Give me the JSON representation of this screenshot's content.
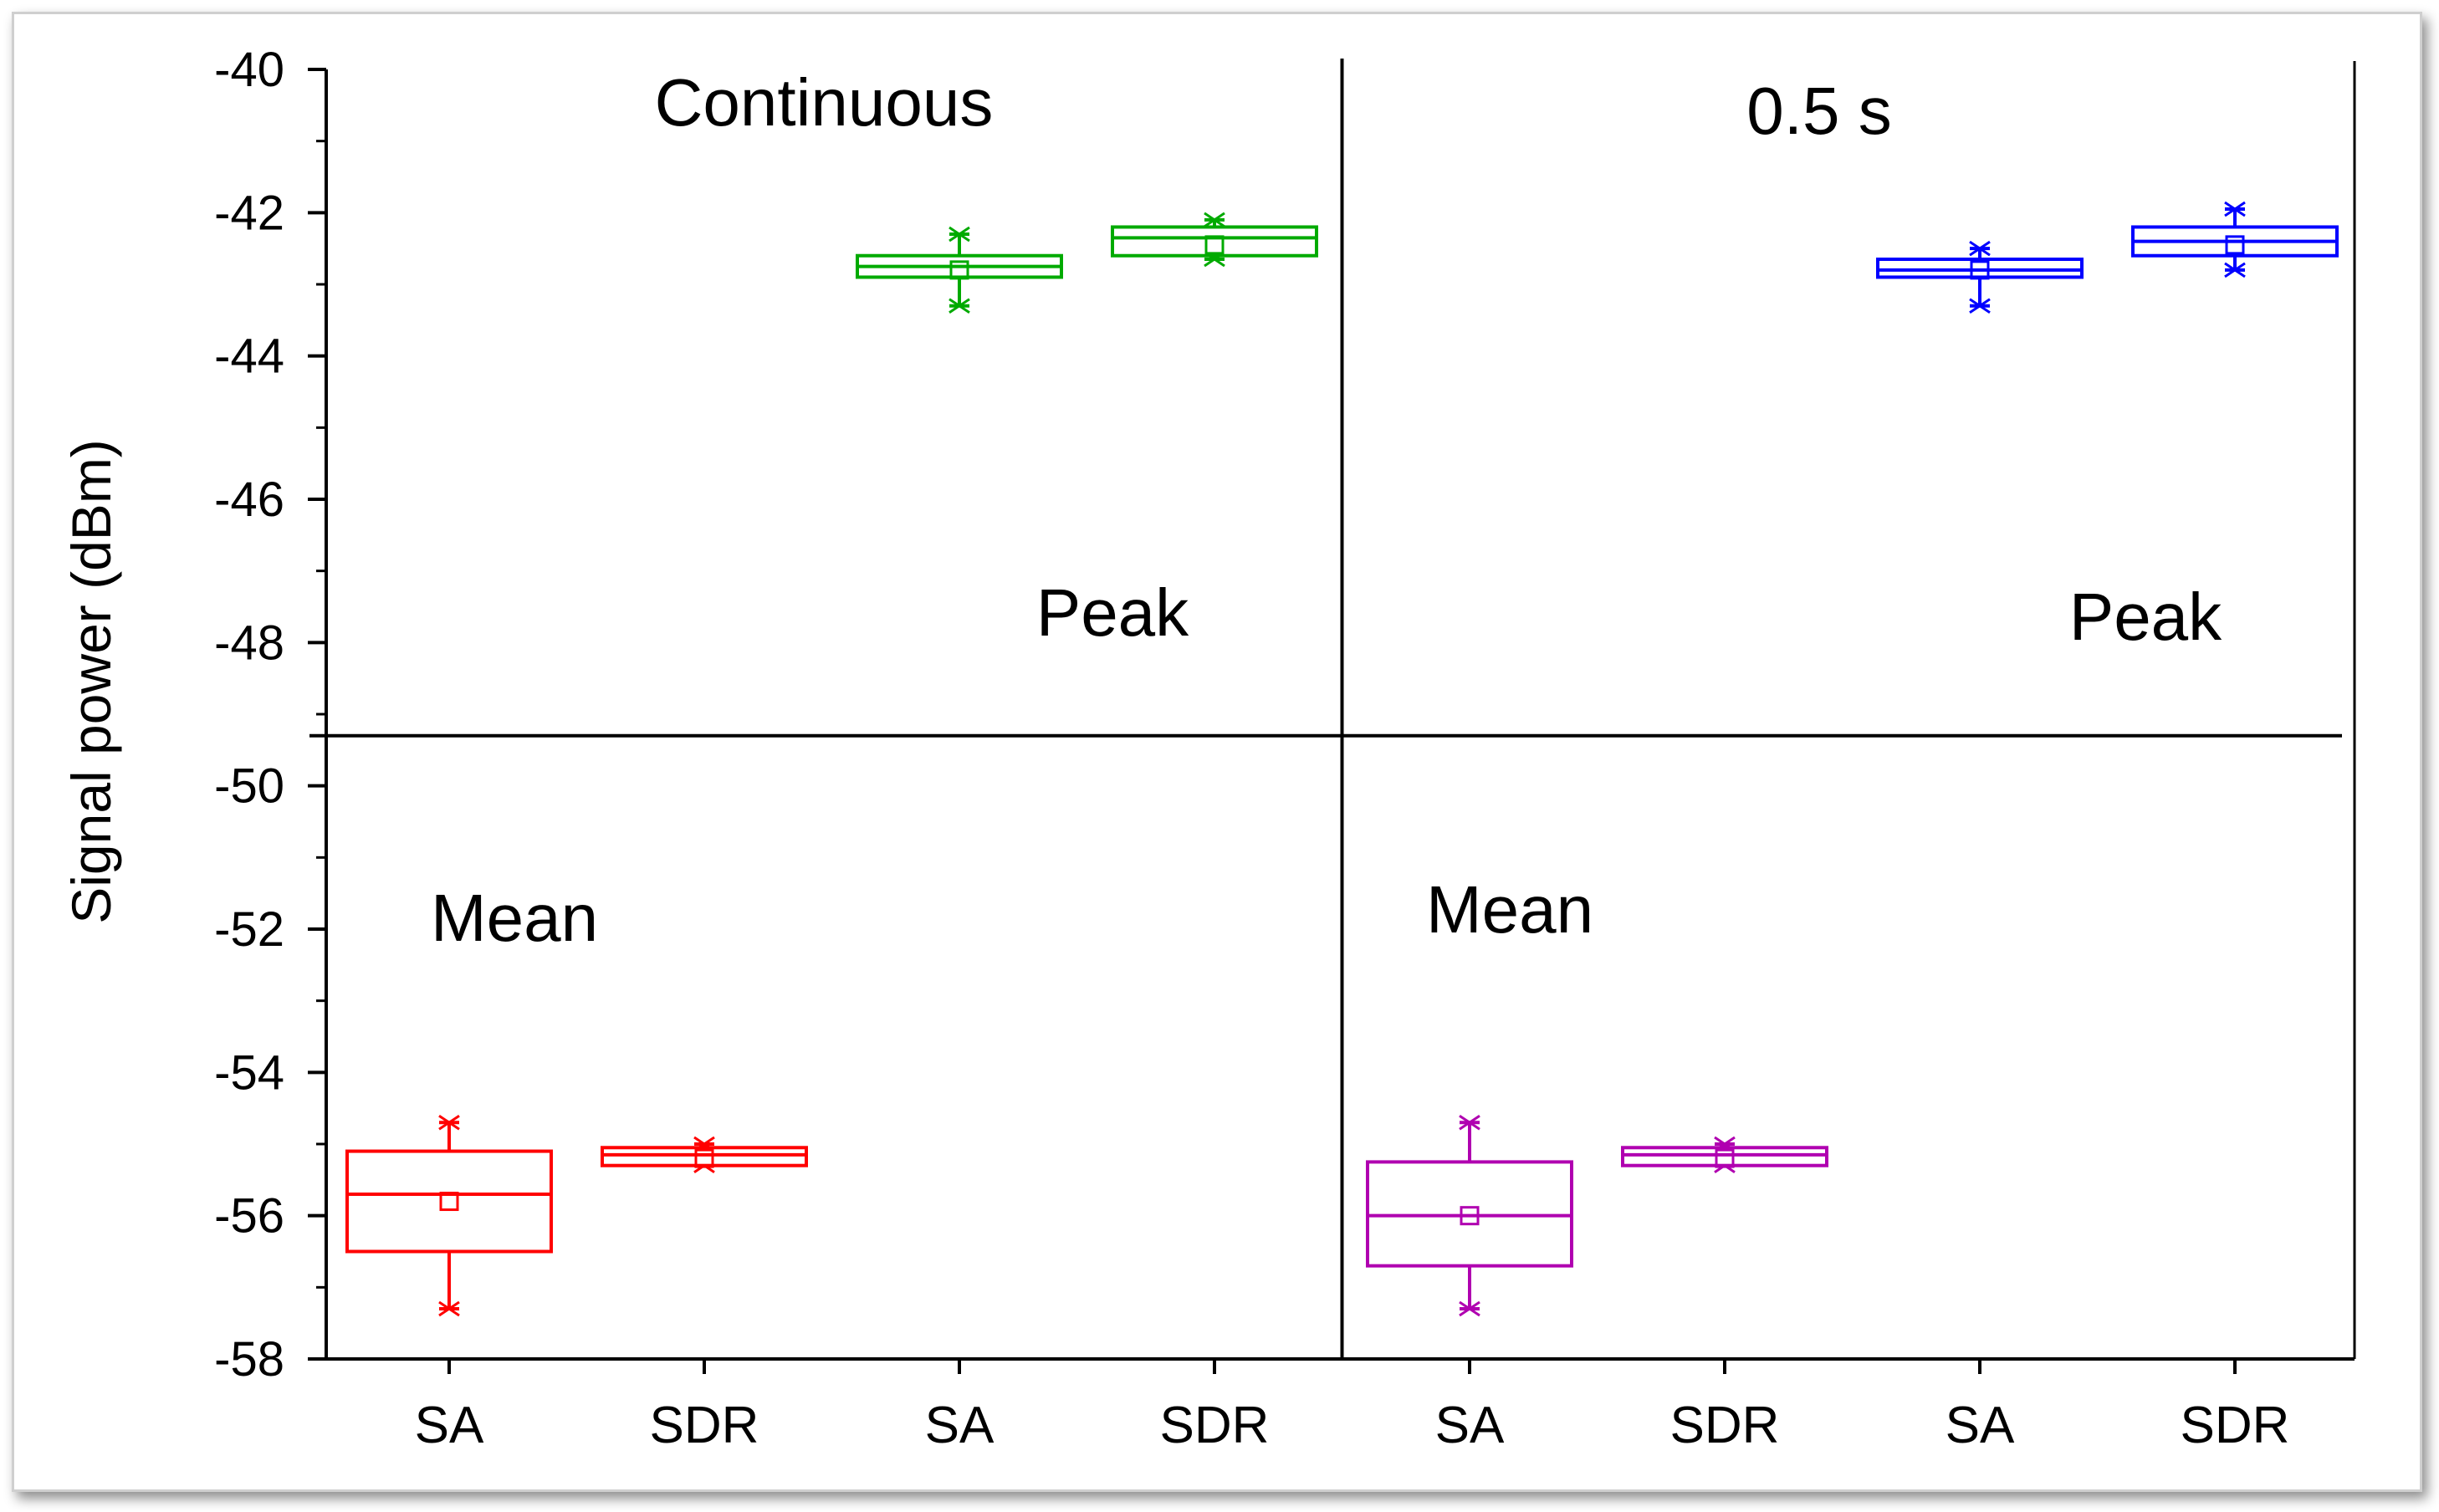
{
  "chart_data": {
    "type": "box",
    "ylabel": "Signal power (dBm)",
    "xlabel": "",
    "ylim": [
      -58,
      -40
    ],
    "yticks": [
      -40,
      -42,
      -44,
      -46,
      -48,
      -50,
      -52,
      -54,
      -56,
      -58
    ],
    "ytick_labels": [
      "-40",
      "-42",
      "-44",
      "-46",
      "-48",
      "-50",
      "-52",
      "-54",
      "-56",
      "-58"
    ],
    "categories": [
      "SA",
      "SDR",
      "SA",
      "SDR",
      "SA",
      "SDR",
      "SA",
      "SDR"
    ],
    "panels": {
      "divider_x_after_category": 4,
      "divider_y_value": -49.3,
      "labels": [
        {
          "text": "Continuous",
          "panel": "top-left"
        },
        {
          "text": "0.5 s",
          "panel": "top-right"
        },
        {
          "text": "Peak",
          "panel": "top-left"
        },
        {
          "text": "Peak",
          "panel": "top-right"
        },
        {
          "text": "Mean",
          "panel": "bottom-left"
        },
        {
          "text": "Mean",
          "panel": "bottom-right"
        }
      ]
    },
    "series": [
      {
        "name": "Continuous Mean SA",
        "category_index": 0,
        "color": "#ff0000",
        "min": -57.3,
        "q1": -56.5,
        "median": -55.7,
        "mean": -55.8,
        "q3": -55.1,
        "max": -54.7
      },
      {
        "name": "Continuous Mean SDR",
        "category_index": 1,
        "color": "#ff0000",
        "min": -55.3,
        "q1": -55.3,
        "median": -55.15,
        "mean": -55.2,
        "q3": -55.05,
        "max": -55.0
      },
      {
        "name": "Continuous Peak SA",
        "category_index": 2,
        "color": "#00aa00",
        "min": -43.3,
        "q1": -42.9,
        "median": -42.75,
        "mean": -42.8,
        "q3": -42.6,
        "max": -42.3
      },
      {
        "name": "Continuous Peak SDR",
        "category_index": 3,
        "color": "#00aa00",
        "min": -42.65,
        "q1": -42.6,
        "median": -42.35,
        "mean": -42.45,
        "q3": -42.2,
        "max": -42.1
      },
      {
        "name": "0.5 s Mean SA",
        "category_index": 4,
        "color": "#b000b0",
        "min": -57.3,
        "q1": -56.7,
        "median": -56.0,
        "mean": -56.0,
        "q3": -55.25,
        "max": -54.7
      },
      {
        "name": "0.5 s Mean SDR",
        "category_index": 5,
        "color": "#b000b0",
        "min": -55.3,
        "q1": -55.3,
        "median": -55.15,
        "mean": -55.2,
        "q3": -55.05,
        "max": -55.0
      },
      {
        "name": "0.5 s Peak SA",
        "category_index": 6,
        "color": "#0000ff",
        "min": -43.3,
        "q1": -42.9,
        "median": -42.8,
        "mean": -42.8,
        "q3": -42.65,
        "max": -42.5
      },
      {
        "name": "0.5 s Peak SDR",
        "category_index": 7,
        "color": "#0000ff",
        "min": -42.8,
        "q1": -42.6,
        "median": -42.4,
        "mean": -42.45,
        "q3": -42.2,
        "max": -41.95
      }
    ]
  }
}
